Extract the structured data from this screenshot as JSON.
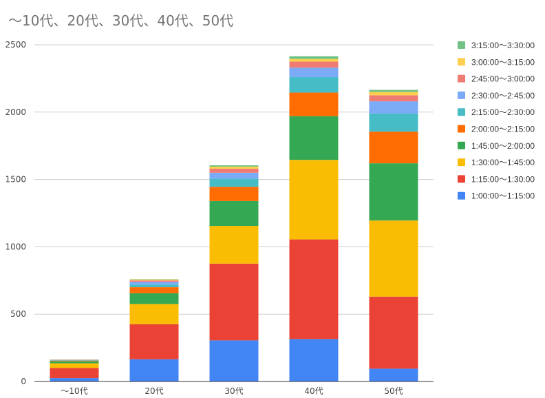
{
  "chart_data": {
    "type": "bar",
    "stacked": true,
    "title": "〜10代、20代、30代、40代、50代",
    "xlabel": "",
    "ylabel": "",
    "categories": [
      "〜10代",
      "20代",
      "30代",
      "40代",
      "50代"
    ],
    "ylim": [
      0,
      2500
    ],
    "yticks": [
      0,
      500,
      1000,
      1500,
      2000,
      2500
    ],
    "grid": true,
    "legend_position": "right",
    "series": [
      {
        "name": "1:00:00〜1:15:00",
        "color": "#4285f4",
        "values": [
          25,
          165,
          305,
          315,
          95
        ]
      },
      {
        "name": "1:15:00〜1:30:00",
        "color": "#ea4335",
        "values": [
          75,
          260,
          570,
          740,
          535
        ]
      },
      {
        "name": "1:30:00〜1:45:00",
        "color": "#fbbc04",
        "values": [
          35,
          150,
          280,
          590,
          565
        ]
      },
      {
        "name": "1:45:00〜2:00:00",
        "color": "#34a853",
        "values": [
          15,
          80,
          185,
          325,
          425
        ]
      },
      {
        "name": "2:00:00〜2:15:00",
        "color": "#ff6d01",
        "values": [
          5,
          45,
          105,
          175,
          235
        ]
      },
      {
        "name": "2:15:00〜2:30:00",
        "color": "#46bdc6",
        "values": [
          3,
          20,
          60,
          115,
          135
        ]
      },
      {
        "name": "2:30:00〜2:45:00",
        "color": "#7baaf7",
        "values": [
          2,
          20,
          45,
          70,
          90
        ]
      },
      {
        "name": "2:45:00〜3:00:00",
        "color": "#f07b72",
        "values": [
          2,
          10,
          30,
          45,
          45
        ]
      },
      {
        "name": "3:00:00〜3:15:00",
        "color": "#fcd04f",
        "values": [
          1,
          7,
          15,
          20,
          25
        ]
      },
      {
        "name": "3:15:00〜3:30:00",
        "color": "#71c287",
        "values": [
          1,
          3,
          10,
          20,
          15
        ]
      }
    ]
  }
}
